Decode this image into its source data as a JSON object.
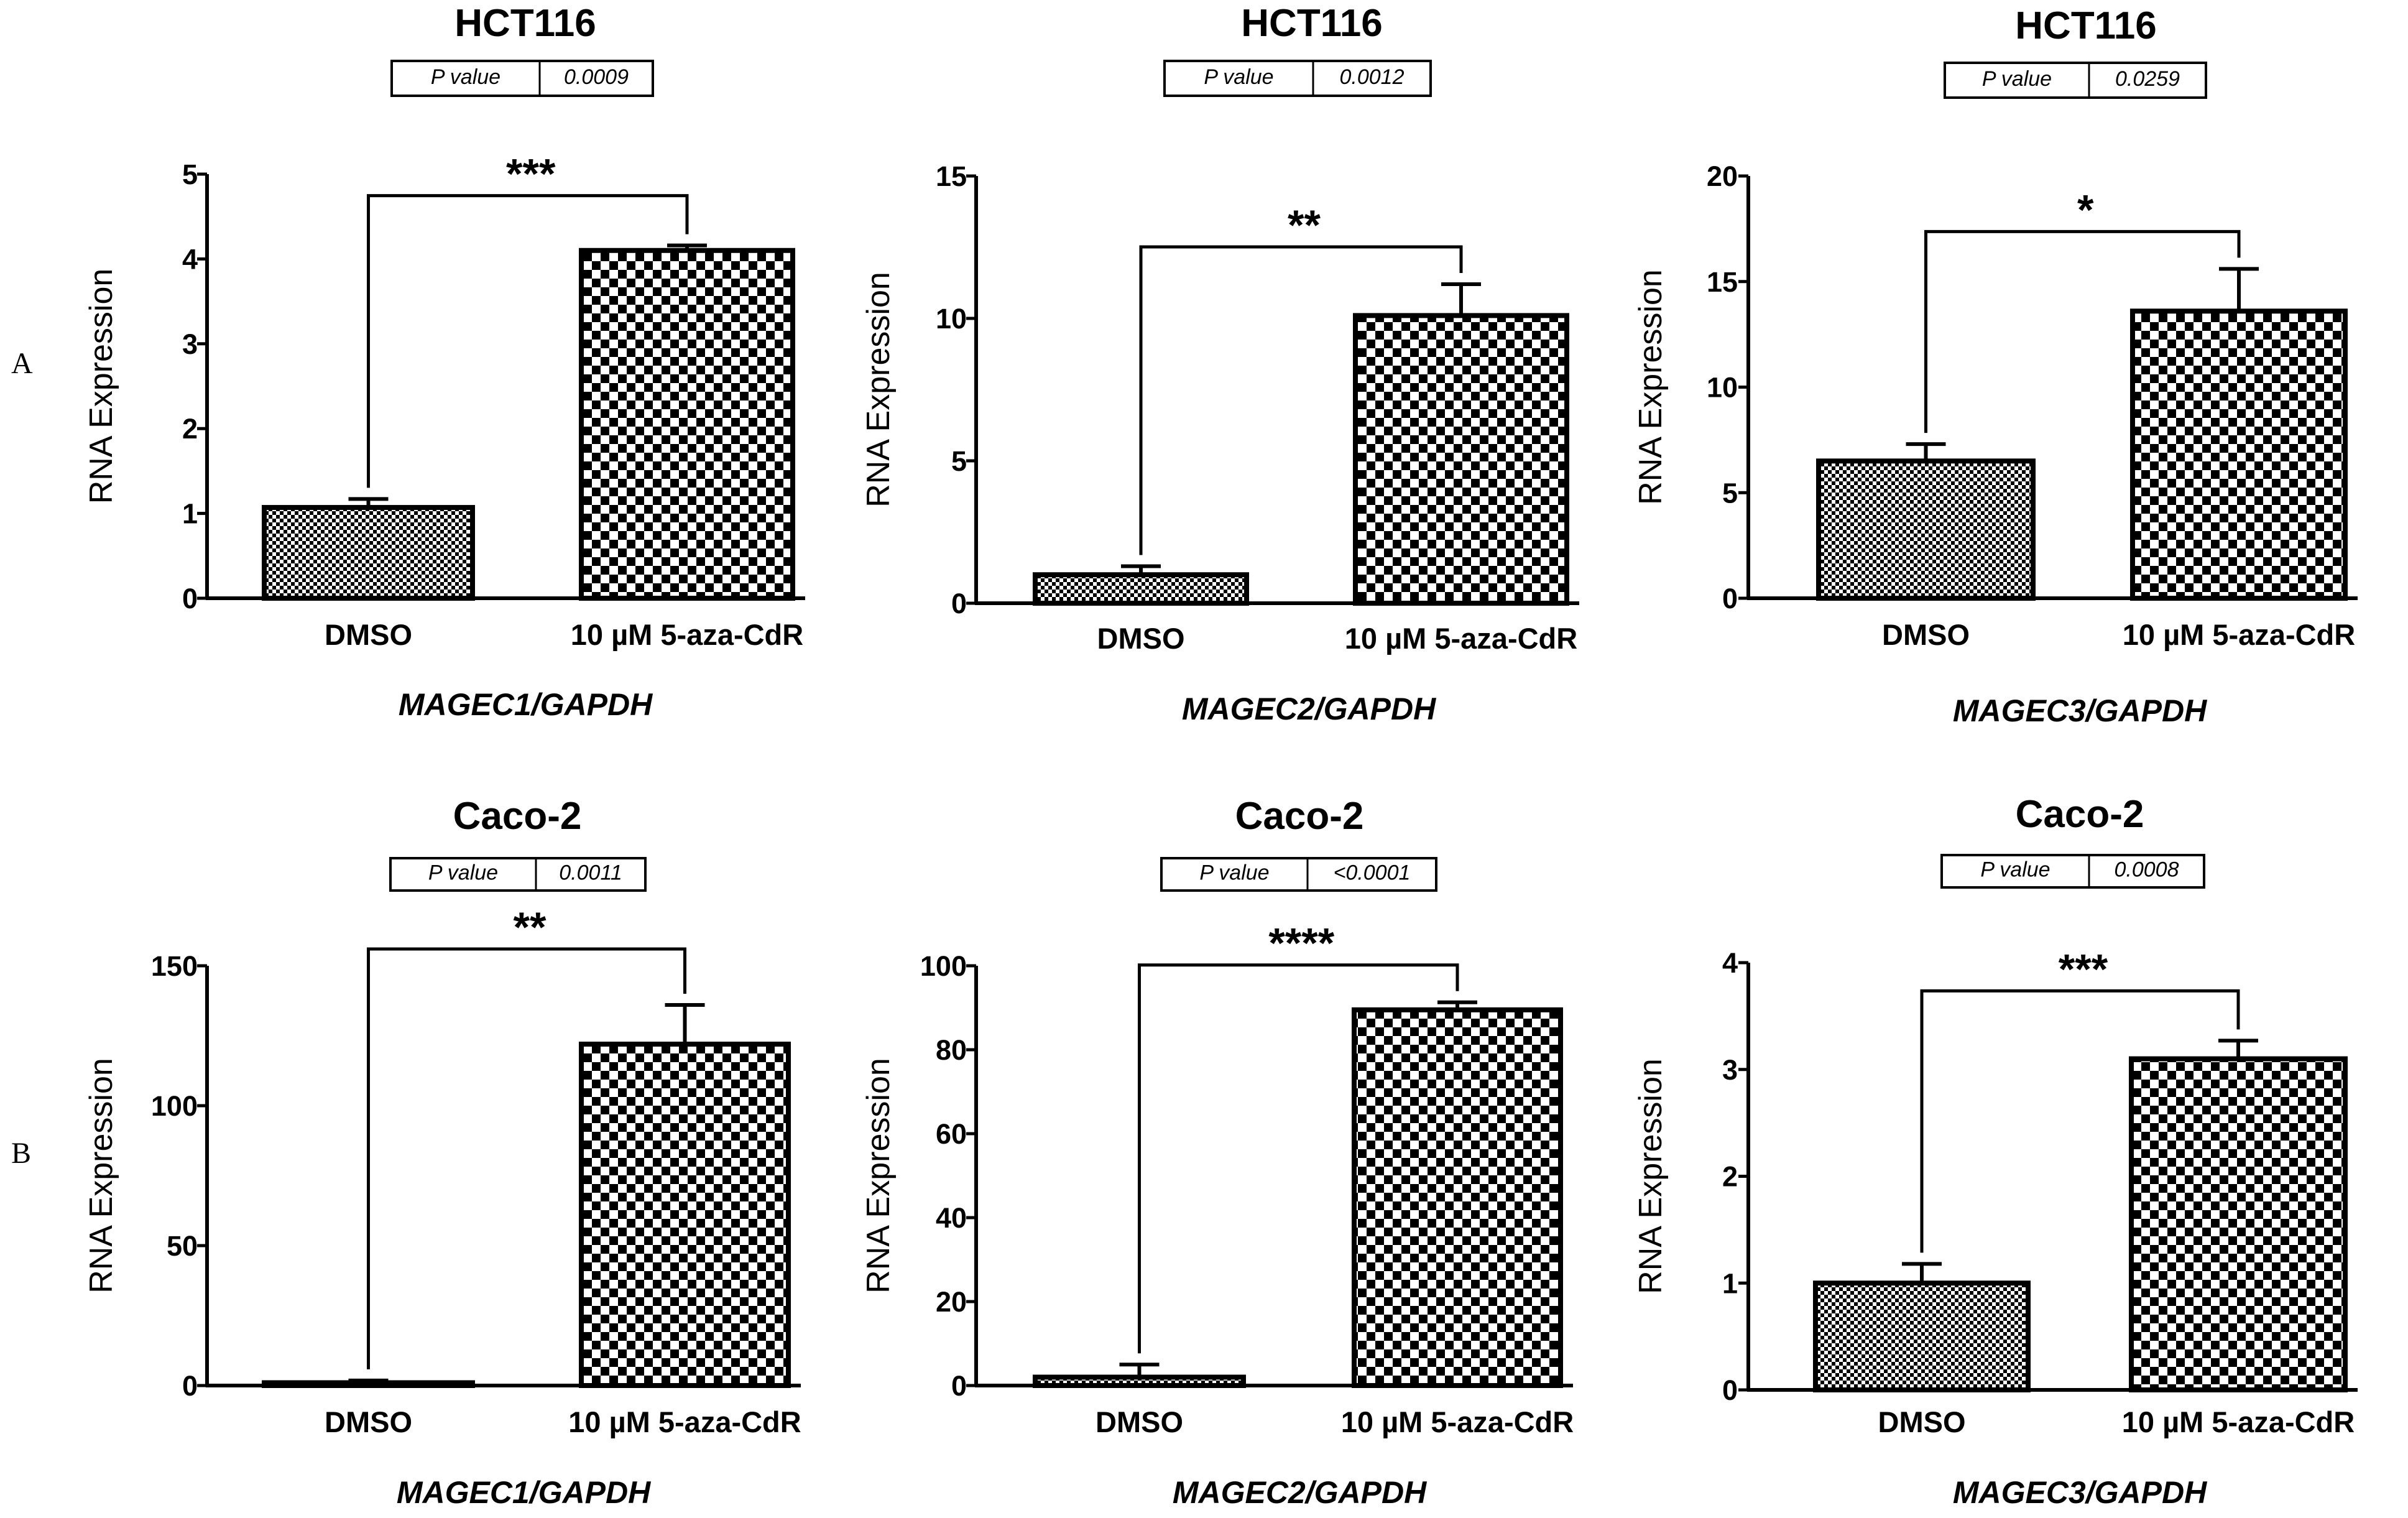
{
  "panel_labels": [
    "A",
    "B"
  ],
  "colors": {
    "ink": "#000000",
    "background": "#ffffff"
  },
  "chart_data": [
    {
      "type": "bar",
      "panel": "A",
      "title": "HCT116",
      "p_label": "P value",
      "p_value": "0.0009",
      "categories": [
        "DMSO",
        "10 µM 5-aza-CdR"
      ],
      "values": [
        1.07,
        4.1
      ],
      "errors": [
        0.1,
        0.06
      ],
      "xlabel": "MAGEC1/GAPDH",
      "ylabel": "RNA Expression",
      "ylim": [
        0,
        5
      ],
      "yticks": [
        0,
        1,
        2,
        3,
        4,
        5
      ],
      "significance": "***",
      "pattern": [
        "fine",
        "coarse"
      ]
    },
    {
      "type": "bar",
      "panel": "A",
      "title": "HCT116",
      "p_label": "P value",
      "p_value": "0.0012",
      "categories": [
        "DMSO",
        "10 µM 5-aza-CdR"
      ],
      "values": [
        1.0,
        10.1
      ],
      "errors": [
        0.3,
        1.1
      ],
      "xlabel": "MAGEC2/GAPDH",
      "ylabel": "RNA Expression",
      "ylim": [
        0,
        15
      ],
      "yticks": [
        0,
        5,
        10,
        15
      ],
      "significance": "**",
      "pattern": [
        "fine",
        "coarse"
      ]
    },
    {
      "type": "bar",
      "panel": "A",
      "title": "HCT116",
      "p_label": "P value",
      "p_value": "0.0259",
      "categories": [
        "DMSO",
        "10 µM 5-aza-CdR"
      ],
      "values": [
        6.5,
        13.6
      ],
      "errors": [
        0.8,
        2.0
      ],
      "xlabel": "MAGEC3/GAPDH",
      "ylabel": "RNA Expression",
      "ylim": [
        0,
        20
      ],
      "yticks": [
        0,
        5,
        10,
        15,
        20
      ],
      "significance": "*",
      "pattern": [
        "fine",
        "coarse"
      ]
    },
    {
      "type": "bar",
      "panel": "B",
      "title": "Caco-2",
      "p_label": "P value",
      "p_value": "0.0011",
      "categories": [
        "DMSO",
        "10 µM 5-aza-CdR"
      ],
      "values": [
        1.0,
        122
      ],
      "errors": [
        0.8,
        14
      ],
      "xlabel": "MAGEC1/GAPDH",
      "ylabel": "RNA Expression",
      "ylim": [
        0,
        150
      ],
      "yticks": [
        0,
        50,
        100,
        150
      ],
      "significance": "**",
      "pattern": [
        "fine",
        "coarse"
      ]
    },
    {
      "type": "bar",
      "panel": "B",
      "title": "Caco-2",
      "p_label": "P value",
      "p_value": "<0.0001",
      "categories": [
        "DMSO",
        "10 µM 5-aza-CdR"
      ],
      "values": [
        2.0,
        89.5
      ],
      "errors": [
        3.0,
        1.8
      ],
      "xlabel": "MAGEC2/GAPDH",
      "ylabel": "RNA Expression",
      "ylim": [
        0,
        100
      ],
      "yticks": [
        0,
        20,
        40,
        60,
        80,
        100
      ],
      "significance": "****",
      "pattern": [
        "fine",
        "coarse"
      ]
    },
    {
      "type": "bar",
      "panel": "B",
      "title": "Caco-2",
      "p_label": "P value",
      "p_value": "0.0008",
      "categories": [
        "DMSO",
        "10 µM 5-aza-CdR"
      ],
      "values": [
        1.0,
        3.1
      ],
      "errors": [
        0.18,
        0.17
      ],
      "xlabel": "MAGEC3/GAPDH",
      "ylabel": "RNA Expression",
      "ylim": [
        0,
        4
      ],
      "yticks": [
        0,
        1,
        2,
        3,
        4
      ],
      "significance": "***",
      "pattern": [
        "fine",
        "coarse"
      ]
    }
  ]
}
